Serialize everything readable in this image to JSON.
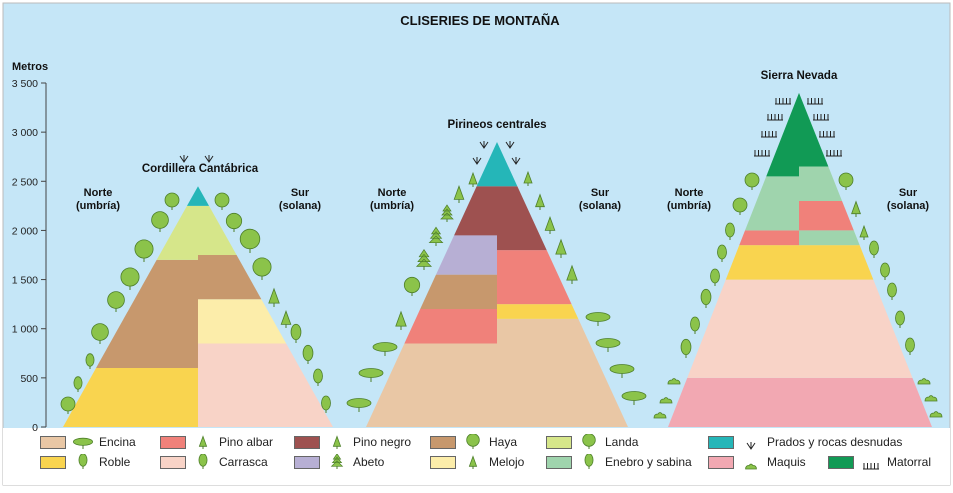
{
  "title": "CLISERIES DE MONTAÑA",
  "axis": {
    "label": "Metros",
    "ticks": [
      {
        "value": 3500,
        "label": "3 500"
      },
      {
        "value": 3000,
        "label": "3 000"
      },
      {
        "value": 2500,
        "label": "2 500"
      },
      {
        "value": 2000,
        "label": "2 000"
      },
      {
        "value": 1500,
        "label": "1 500"
      },
      {
        "value": 1000,
        "label": "1 000"
      },
      {
        "value": 500,
        "label": "500"
      },
      {
        "value": 0,
        "label": "0"
      }
    ]
  },
  "colors": {
    "encina": "#e9c7a5",
    "roble": "#f9d44f",
    "pino_albar": "#f0817a",
    "carrasca": "#f8d3c7",
    "pino_negro": "#9e5150",
    "abeto": "#b7afd4",
    "haya": "#c7986d",
    "melojo": "#fcedaa",
    "landa": "#d6e68a",
    "enebro_sabina": "#9fd4ad",
    "prados": "#25b6b8",
    "maquis": "#f2a8b2",
    "matorral": "#119a55",
    "tree": "#8bc34a",
    "tree_stroke": "#4d7f2a",
    "sky": "#c5e6f7"
  },
  "mountains": [
    {
      "name": "Cordillera Cantábrica",
      "north": "Norte\n(umbría)",
      "south": "Sur\n(solana)",
      "peak_m": 2450,
      "north_zones": [
        {
          "from": 0,
          "to": 600,
          "veg": "roble"
        },
        {
          "from": 600,
          "to": 1700,
          "veg": "haya"
        },
        {
          "from": 1700,
          "to": 2250,
          "veg": "landa"
        },
        {
          "from": 2250,
          "to": 2450,
          "veg": "prados"
        }
      ],
      "south_zones": [
        {
          "from": 0,
          "to": 850,
          "veg": "carrasca"
        },
        {
          "from": 850,
          "to": 1300,
          "veg": "melojo"
        },
        {
          "from": 1300,
          "to": 1750,
          "veg": "haya"
        },
        {
          "from": 1750,
          "to": 2250,
          "veg": "landa"
        },
        {
          "from": 2250,
          "to": 2450,
          "veg": "prados"
        }
      ]
    },
    {
      "name": "Pirineos centrales",
      "north": "Norte\n(umbría)",
      "south": "Sur\n(solana)",
      "peak_m": 2900,
      "north_zones": [
        {
          "from": 0,
          "to": 850,
          "veg": "encina"
        },
        {
          "from": 850,
          "to": 1200,
          "veg": "pino_albar"
        },
        {
          "from": 1200,
          "to": 1550,
          "veg": "haya"
        },
        {
          "from": 1550,
          "to": 1950,
          "veg": "abeto"
        },
        {
          "from": 1950,
          "to": 2450,
          "veg": "pino_negro"
        },
        {
          "from": 2450,
          "to": 2900,
          "veg": "prados"
        }
      ],
      "south_zones": [
        {
          "from": 0,
          "to": 1100,
          "veg": "encina"
        },
        {
          "from": 1100,
          "to": 1250,
          "veg": "roble"
        },
        {
          "from": 1250,
          "to": 1800,
          "veg": "pino_albar"
        },
        {
          "from": 1800,
          "to": 2450,
          "veg": "pino_negro"
        },
        {
          "from": 2450,
          "to": 2900,
          "veg": "prados"
        }
      ]
    },
    {
      "name": "Sierra Nevada",
      "north": "Norte\n(umbría)",
      "south": "Sur\n(solana)",
      "peak_m": 3400,
      "north_zones": [
        {
          "from": 0,
          "to": 500,
          "veg": "maquis"
        },
        {
          "from": 500,
          "to": 1500,
          "veg": "carrasca"
        },
        {
          "from": 1500,
          "to": 1850,
          "veg": "roble"
        },
        {
          "from": 1850,
          "to": 2000,
          "veg": "pino_albar"
        },
        {
          "from": 2000,
          "to": 2550,
          "veg": "enebro_sabina"
        },
        {
          "from": 2550,
          "to": 3400,
          "veg": "matorral"
        }
      ],
      "south_zones": [
        {
          "from": 0,
          "to": 500,
          "veg": "maquis"
        },
        {
          "from": 500,
          "to": 1500,
          "veg": "carrasca"
        },
        {
          "from": 1500,
          "to": 1850,
          "veg": "roble"
        },
        {
          "from": 1850,
          "to": 2000,
          "veg": "enebro_sabina"
        },
        {
          "from": 2000,
          "to": 2300,
          "veg": "pino_albar"
        },
        {
          "from": 2300,
          "to": 2650,
          "veg": "enebro_sabina"
        },
        {
          "from": 2650,
          "to": 3400,
          "veg": "matorral"
        }
      ]
    }
  ],
  "legend": [
    {
      "label": "Encina",
      "color": "encina",
      "icon": "encina-tree-icon"
    },
    {
      "label": "Roble",
      "color": "roble",
      "icon": "roble-tree-icon"
    },
    {
      "label": "Pino albar",
      "color": "pino_albar",
      "icon": "pino-albar-tree-icon"
    },
    {
      "label": "Carrasca",
      "color": "carrasca",
      "icon": "carrasca-tree-icon"
    },
    {
      "label": "Pino negro",
      "color": "pino_negro",
      "icon": "pino-negro-tree-icon"
    },
    {
      "label": "Abeto",
      "color": "abeto",
      "icon": "abeto-tree-icon"
    },
    {
      "label": "Haya",
      "color": "haya",
      "icon": "haya-tree-icon"
    },
    {
      "label": "Melojo",
      "color": "melojo",
      "icon": "melojo-tree-icon"
    },
    {
      "label": "Landa",
      "color": "landa",
      "icon": "landa-tree-icon"
    },
    {
      "label": "Enebro y sabina",
      "color": "enebro_sabina",
      "icon": "enebro-tree-icon"
    },
    {
      "label": "Prados y rocas desnudas",
      "color": "prados",
      "icon": "prados-icon"
    },
    {
      "label": "Maquis",
      "color": "maquis",
      "icon": "maquis-icon"
    },
    {
      "label": "Matorral",
      "color": "matorral",
      "icon": "matorral-icon"
    }
  ]
}
